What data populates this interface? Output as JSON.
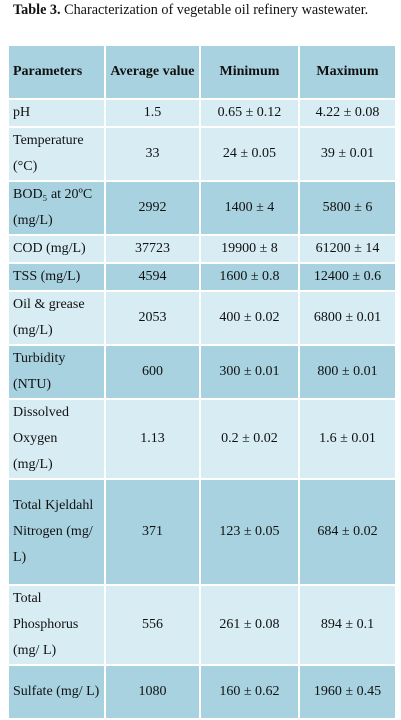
{
  "caption": {
    "label": "Table 3.",
    "text": "Characterization of vegetable oil refinery wastewater."
  },
  "table": {
    "headers": [
      "Parameters",
      "Average value",
      "Minimum",
      "Maximum"
    ],
    "rows": [
      [
        "pH",
        "1.5",
        "0.65 ± 0.12",
        "4.22 ± 0.08"
      ],
      [
        "Temperature (°C)",
        "33",
        "24 ± 0.05",
        "39 ± 0.01"
      ],
      [
        "BOD₅ at 20ºC (mg/L)",
        "2992",
        "1400 ± 4",
        "5800 ± 6"
      ],
      [
        "COD (mg/L)",
        "37723",
        "19900 ± 8",
        "61200 ± 14"
      ],
      [
        "TSS (mg/L)",
        "4594",
        "1600 ± 0.8",
        "12400 ± 0.6"
      ],
      [
        "Oil & grease (mg/L)",
        "2053",
        "400 ± 0.02",
        "6800 ± 0.01"
      ],
      [
        "Turbidity (NTU)",
        "600",
        "300 ± 0.01",
        "800 ± 0.01"
      ],
      [
        "Dissolved Oxygen (mg/L)",
        "1.13",
        "0.2 ± 0.02",
        "1.6 ± 0.01"
      ],
      [
        "Total Kjeldahl Nitrogen (mg/ L)",
        "371",
        "123 ± 0.05",
        "684 ± 0.02"
      ],
      [
        "Total Phosphorus (mg/ L)",
        "556",
        "261 ± 0.08",
        "894 ± 0.1"
      ],
      [
        "Sulfate (mg/ L)",
        "1080",
        "160 ± 0.62",
        "1960 ± 0.45"
      ]
    ]
  }
}
